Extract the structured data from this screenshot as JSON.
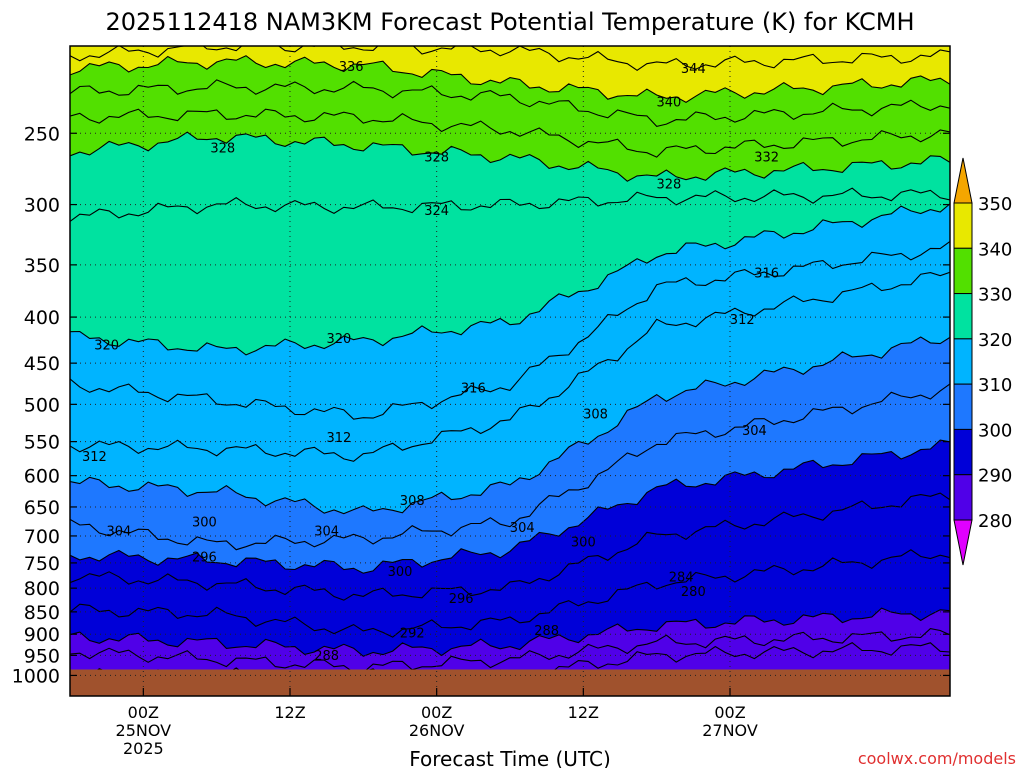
{
  "chart_data": {
    "type": "heatmap",
    "title": "2025112418 NAM3KM Forecast Potential Temperature (K) for KCMH",
    "xlabel": "Forecast Time (UTC)",
    "ylabel": "",
    "y_scale": "log-pressure",
    "y_unit": "hPa",
    "ylim": [
      1000,
      200
    ],
    "y_ticks": [
      250,
      300,
      350,
      400,
      450,
      500,
      550,
      600,
      650,
      700,
      750,
      800,
      850,
      900,
      950,
      1000
    ],
    "x_start": "2025-11-24T18:00Z",
    "x_end": "2025-11-27T18:00Z",
    "x_ticks": [
      {
        "time": "2025-11-25T00:00Z",
        "lines": [
          "00Z",
          "25NOV",
          "2025"
        ]
      },
      {
        "time": "2025-11-25T12:00Z",
        "lines": [
          "12Z"
        ]
      },
      {
        "time": "2025-11-26T00:00Z",
        "lines": [
          "00Z",
          "26NOV"
        ]
      },
      {
        "time": "2025-11-26T12:00Z",
        "lines": [
          "12Z"
        ]
      },
      {
        "time": "2025-11-27T00:00Z",
        "lines": [
          "00Z",
          "27NOV"
        ]
      }
    ],
    "grid": true,
    "legend": "right",
    "colorbar": {
      "levels": [
        280,
        290,
        300,
        310,
        320,
        330,
        340,
        350
      ],
      "colors": [
        "#a000e0",
        "#5000e8",
        "#0000d8",
        "#1e78ff",
        "#00b4ff",
        "#00e2a0",
        "#52e000",
        "#e8e800",
        "#f4a600"
      ],
      "under_color": "#e000ff",
      "over_color": "#f4a600"
    },
    "contour_interval": 2,
    "isentropes": [
      {
        "theta": 344,
        "p": [
          205,
          200,
          200,
          202,
          210,
          205
        ]
      },
      {
        "theta": 340,
        "p": [
          212,
          208,
          210,
          220,
          228,
          218
        ]
      },
      {
        "theta": 336,
        "p": [
          225,
          222,
          223,
          228,
          242,
          232
        ]
      },
      {
        "theta": 332,
        "p": [
          240,
          238,
          240,
          248,
          262,
          250
        ]
      },
      {
        "theta": 328,
        "p": [
          262,
          252,
          258,
          266,
          280,
          268
        ]
      },
      {
        "theta": 324,
        "p": [
          310,
          300,
          302,
          300,
          295,
          292
        ]
      },
      {
        "theta": 320,
        "p": [
          420,
          435,
          425,
          405,
          340,
          300
        ]
      },
      {
        "theta": 316,
        "p": [
          475,
          495,
          515,
          475,
          370,
          335
        ]
      },
      {
        "theta": 312,
        "p": [
          555,
          560,
          570,
          520,
          410,
          358
        ]
      },
      {
        "theta": 308,
        "p": [
          610,
          625,
          660,
          615,
          490,
          420
        ]
      },
      {
        "theta": 304,
        "p": [
          680,
          715,
          705,
          675,
          550,
          480
        ]
      },
      {
        "theta": 300,
        "p": [
          735,
          745,
          760,
          725,
          620,
          555
        ]
      },
      {
        "theta": 296,
        "p": [
          775,
          790,
          815,
          800,
          700,
          630
        ]
      },
      {
        "theta": 292,
        "p": [
          845,
          855,
          895,
          870,
          790,
          730
        ]
      },
      {
        "theta": 288,
        "p": [
          905,
          920,
          940,
          925,
          880,
          850
        ]
      },
      {
        "theta": 284,
        "p": [
          940,
          960,
          980,
          960,
          920,
          900
        ]
      },
      {
        "theta": 282,
        "p": [
          1000,
          1000,
          1000,
          1000,
          950,
          930
        ]
      }
    ],
    "isentrope_times": [
      "2025-11-24T18:00Z",
      "2025-11-25T06:00Z",
      "2025-11-25T18:00Z",
      "2025-11-26T06:00Z",
      "2025-11-26T18:00Z",
      "2025-11-27T18:00Z"
    ],
    "contour_labels": [
      {
        "text": "336",
        "time": "2025-11-25T17:00Z",
        "p": 211
      },
      {
        "text": "344",
        "time": "2025-11-26T21:00Z",
        "p": 212
      },
      {
        "text": "340",
        "time": "2025-11-26T19:00Z",
        "p": 231
      },
      {
        "text": "328",
        "time": "2025-11-25T06:30Z",
        "p": 260
      },
      {
        "text": "328",
        "time": "2025-11-26T00:00Z",
        "p": 266
      },
      {
        "text": "332",
        "time": "2025-11-27T03:00Z",
        "p": 266
      },
      {
        "text": "328",
        "time": "2025-11-26T19:00Z",
        "p": 285
      },
      {
        "text": "324",
        "time": "2025-11-26T00:00Z",
        "p": 305
      },
      {
        "text": "316",
        "time": "2025-11-27T03:00Z",
        "p": 358
      },
      {
        "text": "312",
        "time": "2025-11-27T01:00Z",
        "p": 403
      },
      {
        "text": "320",
        "time": "2025-11-24T21:00Z",
        "p": 430
      },
      {
        "text": "320",
        "time": "2025-11-25T16:00Z",
        "p": 423
      },
      {
        "text": "316",
        "time": "2025-11-26T03:00Z",
        "p": 480
      },
      {
        "text": "308",
        "time": "2025-11-26T13:00Z",
        "p": 513
      },
      {
        "text": "304",
        "time": "2025-11-27T02:00Z",
        "p": 535
      },
      {
        "text": "312",
        "time": "2025-11-25T16:00Z",
        "p": 545
      },
      {
        "text": "312",
        "time": "2025-11-24T20:00Z",
        "p": 572
      },
      {
        "text": "308",
        "time": "2025-11-25T22:00Z",
        "p": 640
      },
      {
        "text": "300",
        "time": "2025-11-25T05:00Z",
        "p": 676
      },
      {
        "text": "304",
        "time": "2025-11-24T22:00Z",
        "p": 692
      },
      {
        "text": "304",
        "time": "2025-11-25T15:00Z",
        "p": 692
      },
      {
        "text": "304",
        "time": "2025-11-26T07:00Z",
        "p": 686
      },
      {
        "text": "300",
        "time": "2025-11-26T12:00Z",
        "p": 712
      },
      {
        "text": "296",
        "time": "2025-11-25T05:00Z",
        "p": 740
      },
      {
        "text": "300",
        "time": "2025-11-25T21:00Z",
        "p": 768
      },
      {
        "text": "296",
        "time": "2025-11-26T02:00Z",
        "p": 822
      },
      {
        "text": "284",
        "time": "2025-11-26T20:00Z",
        "p": 778
      },
      {
        "text": "280",
        "time": "2025-11-26T21:00Z",
        "p": 808
      },
      {
        "text": "292",
        "time": "2025-11-25T22:00Z",
        "p": 898
      },
      {
        "text": "288",
        "time": "2025-11-26T09:00Z",
        "p": 893
      },
      {
        "text": "288",
        "time": "2025-11-25T15:00Z",
        "p": 952
      }
    ],
    "ground_color": "#a0522d",
    "ground_top_p": 985
  },
  "credit": "coolwx.com/models",
  "colors": {
    "credit": "#e03030",
    "grid": "#222222"
  }
}
